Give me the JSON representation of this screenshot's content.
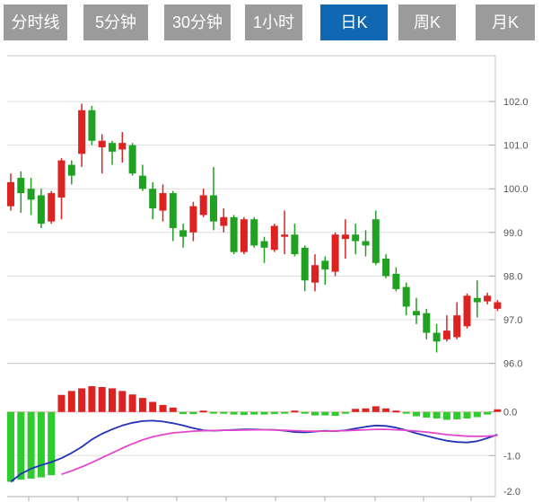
{
  "tabs": {
    "items": [
      {
        "label": "分时线",
        "active": false
      },
      {
        "label": "5分钟",
        "active": false
      },
      {
        "label": "30分钟",
        "active": false
      },
      {
        "label": "1小时",
        "active": false
      },
      {
        "label": "日K",
        "active": true
      },
      {
        "label": "周K",
        "active": false
      },
      {
        "label": "月K",
        "active": false
      }
    ]
  },
  "colors": {
    "tab_inactive": "#9b9b9b",
    "tab_active": "#1267b2",
    "tab_text": "#ffffff",
    "candle_up_red": "#dd2222",
    "candle_down_green": "#21a121",
    "hist_green": "#2ecc2e",
    "dif_blue": "#2233b4",
    "dea_magenta": "#e246cc",
    "grid": "#dddddd",
    "frame": "#c4c4c4",
    "axis_line": "#aaaaaa",
    "axis_text": "#555555",
    "macd_zero_line": "#eab6b6"
  },
  "chart_data": {
    "type": "candlestick",
    "title": "日K (daily candlestick) chart with MACD sub-chart",
    "legend_position": "none",
    "grid": true,
    "main_pane": {
      "y_axis": {
        "labels": [
          "102.0",
          "101.0",
          "100.0",
          "99.0",
          "98.0",
          "97.0",
          "96.0"
        ],
        "values": [
          102,
          101,
          100,
          99,
          98,
          97,
          96
        ],
        "range": [
          95.9,
          103.05
        ]
      },
      "candles_ohlc": [
        [
          99.6,
          100.35,
          99.5,
          100.15
        ],
        [
          100.25,
          100.4,
          99.45,
          99.9
        ],
        [
          100.0,
          100.25,
          99.4,
          99.75
        ],
        [
          99.85,
          100.0,
          99.1,
          99.2
        ],
        [
          99.25,
          99.95,
          99.2,
          99.9
        ],
        [
          99.8,
          100.7,
          99.3,
          100.65
        ],
        [
          100.55,
          100.65,
          100.1,
          100.3
        ],
        [
          100.8,
          101.95,
          100.5,
          101.8
        ],
        [
          101.8,
          101.9,
          101.0,
          101.1
        ],
        [
          100.95,
          101.25,
          100.35,
          101.1
        ],
        [
          101.05,
          101.1,
          100.55,
          100.85
        ],
        [
          100.9,
          101.3,
          100.6,
          101.05
        ],
        [
          101.0,
          101.05,
          100.3,
          100.35
        ],
        [
          100.3,
          100.55,
          99.95,
          100.0
        ],
        [
          100.0,
          100.15,
          99.3,
          99.55
        ],
        [
          99.5,
          100.1,
          99.25,
          99.9
        ],
        [
          99.9,
          99.95,
          98.8,
          99.1
        ],
        [
          99.05,
          99.2,
          98.65,
          98.9
        ],
        [
          99.0,
          99.7,
          98.8,
          99.6
        ],
        [
          99.4,
          100.0,
          99.35,
          99.85
        ],
        [
          99.85,
          100.5,
          99.05,
          99.25
        ],
        [
          99.15,
          99.55,
          99.0,
          99.35
        ],
        [
          99.35,
          99.4,
          98.5,
          98.55
        ],
        [
          98.55,
          99.35,
          98.5,
          99.3
        ],
        [
          99.3,
          99.35,
          98.65,
          98.7
        ],
        [
          98.8,
          98.9,
          98.3,
          98.65
        ],
        [
          98.6,
          99.2,
          98.55,
          99.15
        ],
        [
          98.9,
          99.5,
          98.5,
          98.95
        ],
        [
          98.95,
          99.2,
          98.45,
          98.5
        ],
        [
          98.65,
          98.7,
          97.65,
          97.9
        ],
        [
          97.85,
          98.5,
          97.65,
          98.25
        ],
        [
          98.35,
          98.45,
          97.8,
          98.15
        ],
        [
          98.1,
          99.0,
          98.0,
          98.95
        ],
        [
          98.85,
          99.3,
          98.4,
          98.95
        ],
        [
          98.95,
          99.2,
          98.5,
          98.8
        ],
        [
          98.8,
          99.05,
          98.45,
          98.7
        ],
        [
          99.3,
          99.5,
          98.25,
          98.3
        ],
        [
          98.4,
          98.5,
          97.95,
          98.0
        ],
        [
          98.05,
          98.2,
          97.65,
          97.7
        ],
        [
          97.75,
          97.85,
          97.1,
          97.3
        ],
        [
          97.2,
          97.5,
          96.9,
          97.1
        ],
        [
          97.15,
          97.25,
          96.55,
          96.7
        ],
        [
          96.7,
          96.9,
          96.25,
          96.5
        ],
        [
          96.55,
          97.1,
          96.5,
          96.75
        ],
        [
          96.6,
          97.4,
          96.55,
          97.1
        ],
        [
          96.85,
          97.6,
          96.8,
          97.55
        ],
        [
          97.5,
          97.9,
          97.05,
          97.4
        ],
        [
          97.42,
          97.62,
          97.35,
          97.55
        ],
        [
          97.25,
          97.45,
          97.2,
          97.4
        ]
      ]
    },
    "macd_pane": {
      "y_axis": {
        "labels": [
          "0.0",
          "-1.0",
          "-2.0"
        ],
        "values": [
          0,
          -1,
          -2
        ],
        "range": [
          -2.05,
          0.6
        ]
      },
      "histogram": [
        -1.6,
        -1.55,
        -1.53,
        -1.5,
        -1.45,
        0.39,
        0.48,
        0.54,
        0.59,
        0.57,
        0.54,
        0.48,
        0.4,
        0.32,
        0.23,
        0.16,
        0.1,
        -0.05,
        -0.05,
        0.03,
        -0.02,
        -0.02,
        -0.06,
        -0.07,
        -0.06,
        -0.06,
        -0.05,
        -0.02,
        0.03,
        -0.02,
        -0.08,
        -0.08,
        -0.09,
        -0.02,
        0.07,
        0.08,
        0.13,
        0.08,
        0.03,
        -0.04,
        -0.1,
        -0.13,
        -0.15,
        -0.18,
        -0.17,
        -0.15,
        -0.12,
        -0.06,
        0.06
      ],
      "dif_line": [
        -1.6,
        -1.42,
        -1.3,
        -1.22,
        -1.15,
        -1.06,
        -0.94,
        -0.8,
        -0.63,
        -0.5,
        -0.4,
        -0.31,
        -0.25,
        -0.21,
        -0.2,
        -0.22,
        -0.26,
        -0.31,
        -0.37,
        -0.42,
        -0.43,
        -0.42,
        -0.41,
        -0.4,
        -0.4,
        -0.41,
        -0.41,
        -0.43,
        -0.46,
        -0.47,
        -0.45,
        -0.43,
        -0.44,
        -0.42,
        -0.38,
        -0.34,
        -0.31,
        -0.32,
        -0.36,
        -0.42,
        -0.49,
        -0.55,
        -0.61,
        -0.66,
        -0.69,
        -0.7,
        -0.67,
        -0.6,
        -0.52
      ],
      "dea_line": [
        null,
        null,
        null,
        null,
        null,
        -1.43,
        -1.35,
        -1.26,
        -1.16,
        -1.05,
        -0.94,
        -0.83,
        -0.73,
        -0.64,
        -0.57,
        -0.52,
        -0.48,
        -0.46,
        -0.44,
        -0.43,
        -0.425,
        -0.42,
        -0.42,
        -0.415,
        -0.41,
        -0.41,
        -0.415,
        -0.42,
        -0.43,
        -0.44,
        -0.44,
        -0.44,
        -0.435,
        -0.43,
        -0.42,
        -0.41,
        -0.4,
        -0.4,
        -0.41,
        -0.42,
        -0.44,
        -0.46,
        -0.49,
        -0.52,
        -0.54,
        -0.555,
        -0.56,
        -0.555,
        -0.54
      ]
    }
  }
}
